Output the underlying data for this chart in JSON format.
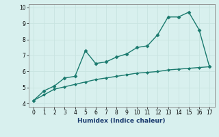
{
  "x": [
    0,
    1,
    2,
    3,
    4,
    5,
    6,
    7,
    8,
    9,
    10,
    11,
    12,
    13,
    14,
    15,
    16,
    17
  ],
  "line1_y": [
    4.2,
    4.8,
    5.1,
    5.6,
    5.7,
    7.3,
    6.5,
    6.6,
    6.9,
    7.1,
    7.5,
    7.6,
    8.3,
    9.4,
    9.4,
    9.7,
    8.6,
    6.3
  ],
  "line2_y": [
    4.2,
    4.55,
    4.9,
    5.05,
    5.2,
    5.35,
    5.5,
    5.6,
    5.7,
    5.8,
    5.9,
    5.95,
    6.0,
    6.1,
    6.15,
    6.2,
    6.25,
    6.3
  ],
  "line_color": "#1a7a6e",
  "bg_color": "#d8f0ee",
  "grid_color": "#c8e4e0",
  "xlabel": "Humidex (Indice chaleur)",
  "ylim": [
    3.8,
    10.2
  ],
  "xlim": [
    -0.5,
    17.5
  ],
  "yticks": [
    4,
    5,
    6,
    7,
    8,
    9,
    10
  ],
  "xticks": [
    0,
    1,
    2,
    3,
    4,
    5,
    6,
    7,
    8,
    9,
    10,
    11,
    12,
    13,
    14,
    15,
    16,
    17
  ],
  "marker": "D",
  "markersize": 2.5,
  "linewidth": 1.0
}
